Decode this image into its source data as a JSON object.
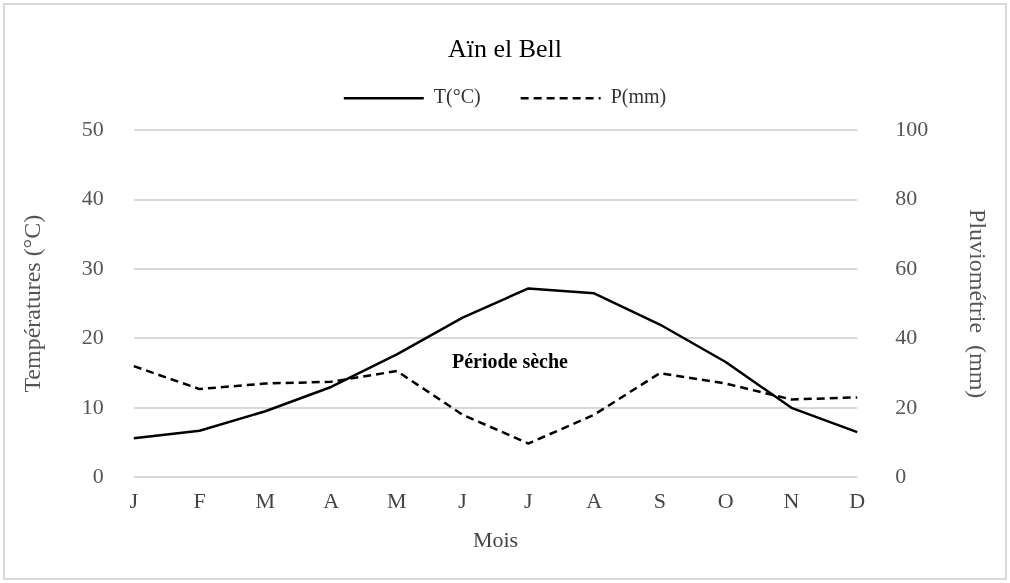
{
  "chart_data": {
    "type": "line",
    "title": "Aïn el Bell",
    "xlabel": "Mois",
    "ylabel": "Températures (°C)",
    "y2label": "Pluviométrie  (mm)",
    "categories": [
      "J",
      "F",
      "M",
      "A",
      "M",
      "J",
      "J",
      "A",
      "S",
      "O",
      "N",
      "D"
    ],
    "series": [
      {
        "name": "T(°C)",
        "color": "#000000",
        "line_style": "solid",
        "values": [
          5.6,
          6.7,
          9.5,
          13,
          17.7,
          23,
          27.2,
          26.5,
          22,
          16.6,
          10,
          6.5
        ]
      },
      {
        "name": "P(mm)",
        "color": "#000000",
        "line_style": "dashed",
        "axis": "y2",
        "values": [
          32,
          25.4,
          27,
          27.5,
          30.6,
          18,
          9.7,
          18,
          30,
          27,
          22.4,
          23
        ]
      }
    ],
    "ylim": [
      0,
      50
    ],
    "yticks": [
      0,
      10,
      20,
      30,
      40,
      50
    ],
    "y2lim": [
      0,
      100
    ],
    "y2ticks": [
      0,
      20,
      40,
      60,
      80,
      100
    ],
    "grid": "y",
    "legend": "top",
    "marker": "none",
    "annotations": [
      "Période sèche"
    ]
  }
}
